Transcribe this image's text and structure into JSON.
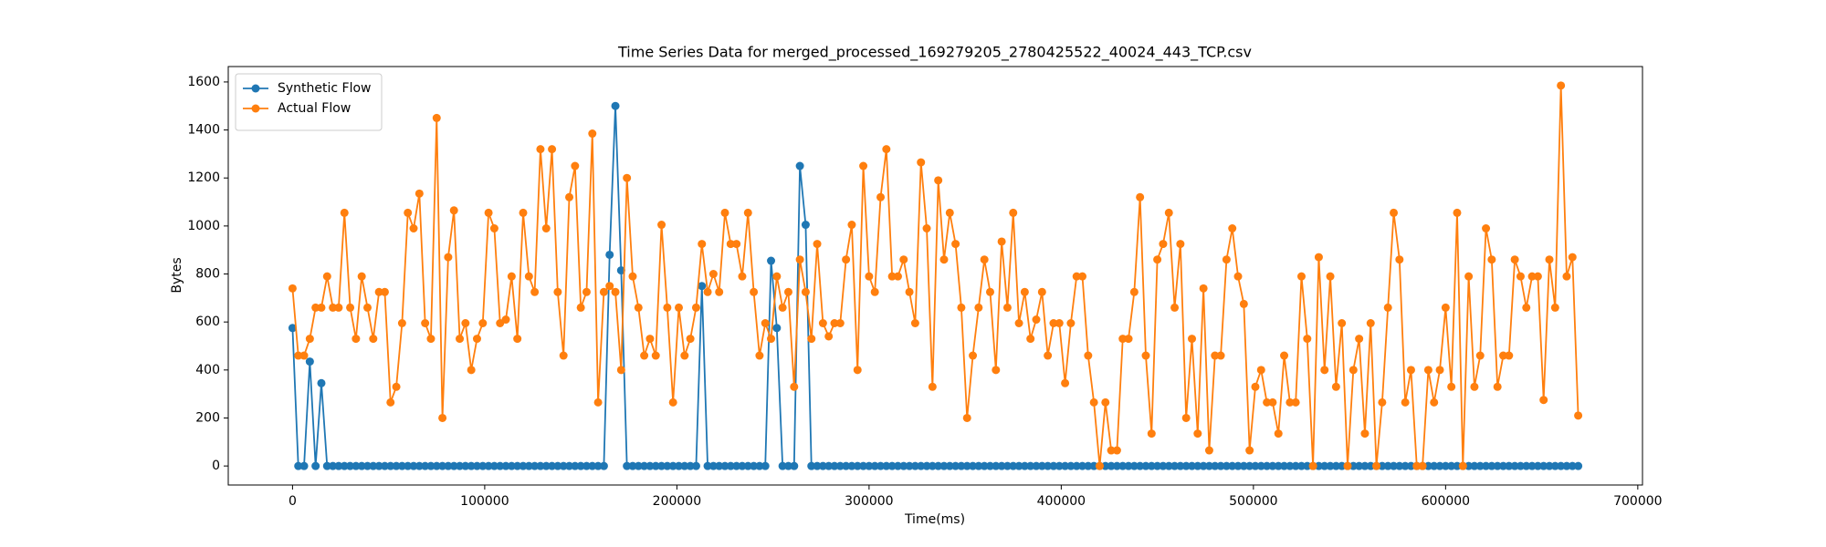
{
  "chart_data": {
    "type": "line",
    "title": "Time Series Data for merged_processed_169279205_2780425522_40024_443_TCP.csv",
    "x_label": "Time(ms)",
    "y_label": "Bytes",
    "x": [
      0,
      3000,
      6000,
      9000,
      12000,
      15000,
      18000,
      21000,
      24000,
      27000,
      30000,
      33000,
      36000,
      39000,
      42000,
      45000,
      48000,
      51000,
      54000,
      57000,
      60000,
      63000,
      66000,
      69000,
      72000,
      75000,
      78000,
      81000,
      84000,
      87000,
      90000,
      93000,
      96000,
      99000,
      102000,
      105000,
      108000,
      111000,
      114000,
      117000,
      120000,
      123000,
      126000,
      129000,
      132000,
      135000,
      138000,
      141000,
      144000,
      147000,
      150000,
      153000,
      156000,
      159000,
      162000,
      165000,
      168000,
      171000,
      174000,
      177000,
      180000,
      183000,
      186000,
      189000,
      192000,
      195000,
      198000,
      201000,
      204000,
      207000,
      210000,
      213000,
      216000,
      219000,
      222000,
      225000,
      228000,
      231000,
      234000,
      237000,
      240000,
      243000,
      246000,
      249000,
      252000,
      255000,
      258000,
      261000,
      264000,
      267000,
      270000,
      273000,
      276000,
      279000,
      282000,
      285000,
      288000,
      291000,
      294000,
      297000,
      300000,
      303000,
      306000,
      309000,
      312000,
      315000,
      318000,
      321000,
      324000,
      327000,
      330000,
      333000,
      336000,
      339000,
      342000,
      345000,
      348000,
      351000,
      354000,
      357000,
      360000,
      363000,
      366000,
      369000,
      372000,
      375000,
      378000,
      381000,
      384000,
      387000,
      390000,
      393000,
      396000,
      399000,
      402000,
      405000,
      408000,
      411000,
      414000,
      417000,
      420000,
      423000,
      426000,
      429000,
      432000,
      435000,
      438000,
      441000,
      444000,
      447000,
      450000,
      453000,
      456000,
      459000,
      462000,
      465000,
      468000,
      471000,
      474000,
      477000,
      480000,
      483000,
      486000,
      489000,
      492000,
      495000,
      498000,
      501000,
      504000,
      507000,
      510000,
      513000,
      516000,
      519000,
      522000,
      525000,
      528000,
      531000,
      534000,
      537000,
      540000,
      543000,
      546000,
      549000,
      552000,
      555000,
      558000,
      561000,
      564000,
      567000,
      570000,
      573000,
      576000,
      579000,
      582000,
      585000,
      588000,
      591000,
      594000,
      597000,
      600000,
      603000,
      606000,
      609000,
      612000,
      615000,
      618000,
      621000,
      624000,
      627000,
      630000,
      633000,
      636000,
      639000,
      642000,
      645000,
      648000,
      651000,
      654000,
      657000,
      660000,
      663000,
      666000,
      669000
    ],
    "series": [
      {
        "name": "Synthetic Flow",
        "color": "#1f77b4",
        "values": [
          575,
          0,
          0,
          435,
          0,
          345,
          0,
          0,
          0,
          0,
          0,
          0,
          0,
          0,
          0,
          0,
          0,
          0,
          0,
          0,
          0,
          0,
          0,
          0,
          0,
          0,
          0,
          0,
          0,
          0,
          0,
          0,
          0,
          0,
          0,
          0,
          0,
          0,
          0,
          0,
          0,
          0,
          0,
          0,
          0,
          0,
          0,
          0,
          0,
          0,
          0,
          0,
          0,
          0,
          0,
          880,
          1500,
          815,
          0,
          0,
          0,
          0,
          0,
          0,
          0,
          0,
          0,
          0,
          0,
          0,
          0,
          750,
          0,
          0,
          0,
          0,
          0,
          0,
          0,
          0,
          0,
          0,
          0,
          855,
          575,
          0,
          0,
          0,
          1250,
          1005,
          0,
          0,
          0,
          0,
          0,
          0,
          0,
          0,
          0,
          0,
          0,
          0,
          0,
          0,
          0,
          0,
          0,
          0,
          0,
          0,
          0,
          0,
          0,
          0,
          0,
          0,
          0,
          0,
          0,
          0,
          0,
          0,
          0,
          0,
          0,
          0,
          0,
          0,
          0,
          0,
          0,
          0,
          0,
          0,
          0,
          0,
          0,
          0,
          0,
          0,
          0,
          0,
          0,
          0,
          0,
          0,
          0,
          0,
          0,
          0,
          0,
          0,
          0,
          0,
          0,
          0,
          0,
          0,
          0,
          0,
          0,
          0,
          0,
          0,
          0,
          0,
          0,
          0,
          0,
          0,
          0,
          0,
          0,
          0,
          0,
          0,
          0,
          0,
          0,
          0,
          0,
          0,
          0,
          0,
          0,
          0,
          0,
          0,
          0,
          0,
          0,
          0,
          0,
          0,
          0,
          0,
          0,
          0,
          0,
          0,
          0,
          0,
          0,
          0,
          0,
          0,
          0,
          0,
          0,
          0,
          0,
          0,
          0,
          0,
          0,
          0,
          0,
          0,
          0,
          0,
          0,
          0,
          0,
          0
        ]
      },
      {
        "name": "Actual Flow",
        "color": "#ff7f0e",
        "values": [
          740,
          460,
          460,
          530,
          660,
          660,
          790,
          660,
          660,
          1055,
          660,
          530,
          790,
          660,
          530,
          725,
          725,
          265,
          330,
          595,
          1055,
          990,
          1135,
          595,
          530,
          1450,
          200,
          870,
          1065,
          530,
          595,
          400,
          530,
          595,
          1055,
          990,
          595,
          610,
          790,
          530,
          1055,
          790,
          725,
          1320,
          990,
          1320,
          725,
          460,
          1120,
          1250,
          660,
          725,
          1385,
          265,
          725,
          750,
          725,
          400,
          1200,
          790,
          660,
          460,
          530,
          460,
          1005,
          660,
          265,
          660,
          460,
          530,
          660,
          925,
          725,
          800,
          725,
          1055,
          925,
          925,
          790,
          1055,
          725,
          460,
          595,
          530,
          790,
          660,
          725,
          330,
          860,
          725,
          530,
          925,
          595,
          540,
          595,
          595,
          860,
          1005,
          400,
          1250,
          790,
          725,
          1120,
          1320,
          790,
          790,
          860,
          725,
          595,
          1265,
          990,
          330,
          1190,
          860,
          1055,
          925,
          660,
          200,
          460,
          660,
          860,
          725,
          400,
          935,
          660,
          1055,
          595,
          725,
          530,
          610,
          725,
          460,
          595,
          595,
          345,
          595,
          790,
          790,
          460,
          265,
          0,
          265,
          65,
          65,
          530,
          530,
          725,
          1120,
          460,
          135,
          860,
          925,
          1055,
          660,
          925,
          200,
          530,
          135,
          740,
          65,
          460,
          460,
          860,
          990,
          790,
          675,
          65,
          330,
          400,
          265,
          265,
          135,
          460,
          265,
          265,
          790,
          530,
          0,
          870,
          400,
          790,
          330,
          595,
          0,
          400,
          530,
          135,
          595,
          0,
          265,
          660,
          1055,
          860,
          265,
          400,
          0,
          0,
          400,
          265,
          400,
          660,
          330,
          1055,
          0,
          790,
          330,
          460,
          990,
          860,
          330,
          460,
          460,
          860,
          790,
          660,
          790,
          790,
          275,
          860,
          660,
          1585,
          790,
          870,
          210
        ]
      }
    ],
    "xlim": [
      -33450,
      702450
    ],
    "ylim": [
      -79.25,
      1664.25
    ],
    "xticks": [
      0,
      100000,
      200000,
      300000,
      400000,
      500000,
      600000,
      700000
    ],
    "yticks": [
      0,
      200,
      400,
      600,
      800,
      1000,
      1200,
      1400,
      1600
    ],
    "grid": false,
    "legend": "upper left",
    "markers": true
  }
}
